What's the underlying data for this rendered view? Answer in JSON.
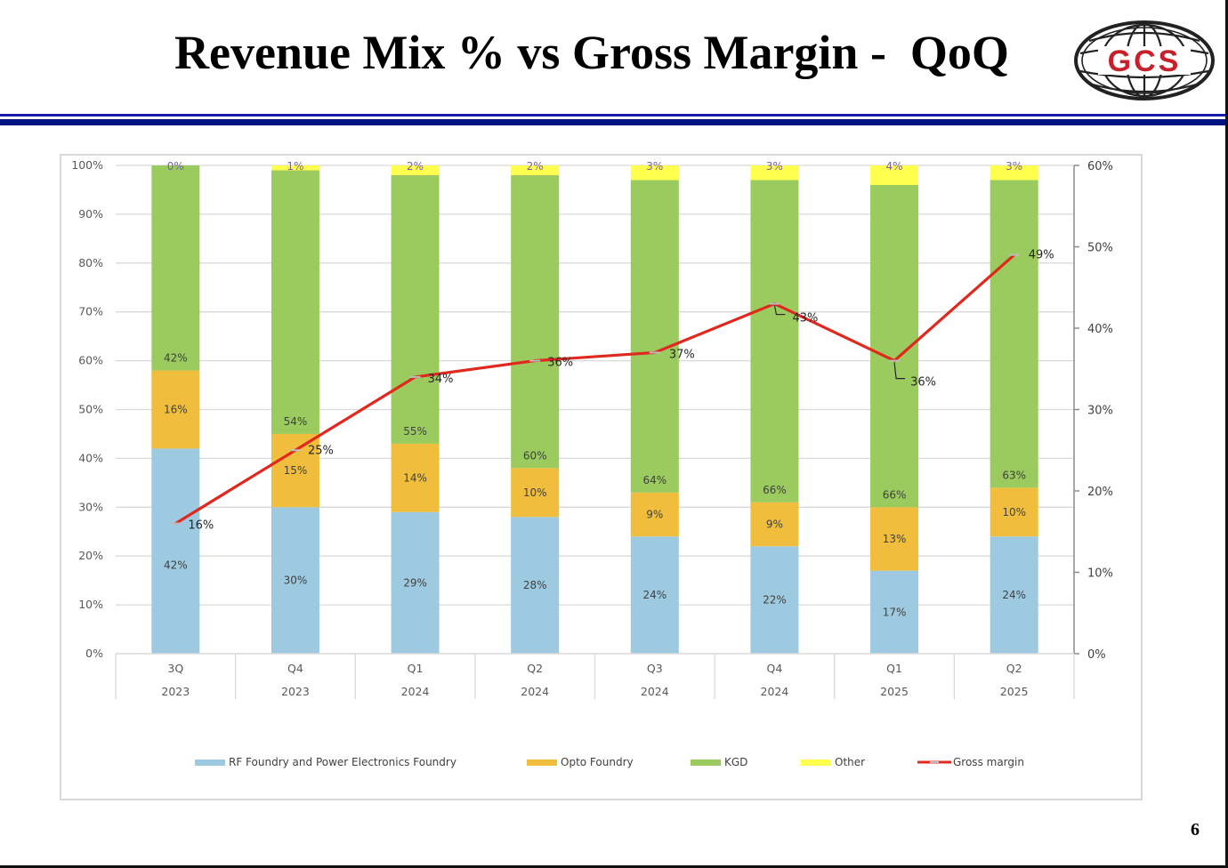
{
  "slide": {
    "title": "Revenue Mix % vs Gross Margin -  QoQ",
    "logo_text": "GCS",
    "page_number": "6",
    "colors": {
      "title": "#000000",
      "rule_blue": "#00137f",
      "logo_red": "#c8202a"
    }
  },
  "chart_data": {
    "type": "bar",
    "subtype": "stacked-100-bar-with-line",
    "title": "Revenue Mix % vs Gross Margin -  QoQ",
    "categories": [
      {
        "quarter": "3Q",
        "year": "2023"
      },
      {
        "quarter": "Q4",
        "year": "2023"
      },
      {
        "quarter": "Q1",
        "year": "2024"
      },
      {
        "quarter": "Q2",
        "year": "2024"
      },
      {
        "quarter": "Q3",
        "year": "2024"
      },
      {
        "quarter": "Q4",
        "year": "2024"
      },
      {
        "quarter": "Q1",
        "year": "2025"
      },
      {
        "quarter": "Q2",
        "year": "2025"
      }
    ],
    "series": [
      {
        "name": "RF Foundry and Power Electronics Foundry",
        "color": "#9ecae1",
        "axis": "left",
        "values": [
          42,
          30,
          29,
          28,
          24,
          22,
          17,
          24
        ]
      },
      {
        "name": "Opto Foundry",
        "color": "#f0be3c",
        "axis": "left",
        "values": [
          16,
          15,
          14,
          10,
          9,
          9,
          13,
          10
        ]
      },
      {
        "name": "KGD",
        "color": "#9bcb5e",
        "axis": "left",
        "values": [
          42,
          54,
          55,
          60,
          64,
          66,
          66,
          63
        ]
      },
      {
        "name": "Other",
        "color": "#ffff4d",
        "axis": "left",
        "values": [
          0,
          1,
          2,
          2,
          3,
          3,
          4,
          3
        ]
      },
      {
        "name": "Gross margin",
        "color": "#e0281e",
        "axis": "right",
        "type": "line",
        "values": [
          16,
          25,
          34,
          36,
          37,
          43,
          36,
          49
        ]
      }
    ],
    "left_axis": {
      "ylim": [
        0,
        100
      ],
      "ticks": [
        "0%",
        "10%",
        "20%",
        "30%",
        "40%",
        "50%",
        "60%",
        "70%",
        "80%",
        "90%",
        "100%"
      ]
    },
    "right_axis": {
      "ylim": [
        0,
        60
      ],
      "ticks": [
        "0%",
        "10%",
        "20%",
        "30%",
        "40%",
        "50%",
        "60%"
      ]
    },
    "xlabel": "",
    "ylabel": "",
    "grid": true,
    "legend_position": "bottom"
  }
}
